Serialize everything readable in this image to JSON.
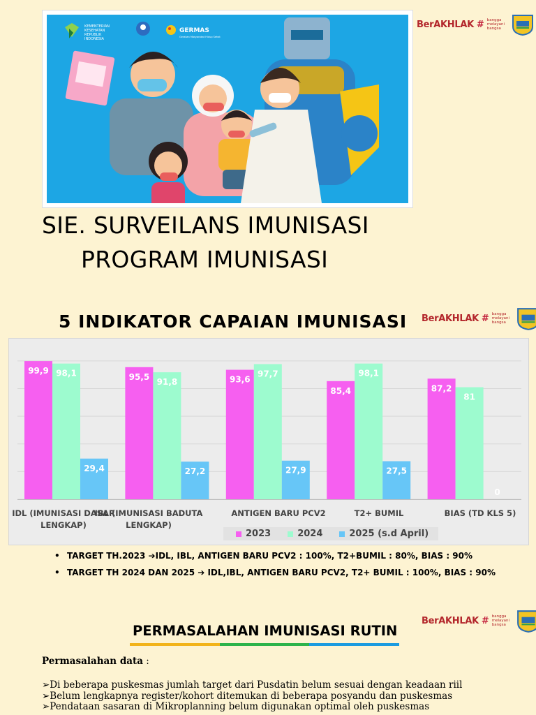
{
  "banner": {
    "ministry_text": "KEMENTERIAN KESEHATAN REPUBLIK INDONESIA",
    "germas_text": "GERMAS",
    "germas_sub": "Gerakan Masyarakat Hidup Sehat"
  },
  "brand": {
    "name": "BerAKHLAK",
    "tagline": "bangga melayani bangsa",
    "accent": "#b3262b"
  },
  "header": {
    "title_line1": "SIE. SURVEILANS IMUNISASI",
    "title_line2": "PROGRAM IMUNISASI"
  },
  "chart_title": "5 INDIKATOR CAPAIAN IMUNISASI",
  "chart_data": {
    "type": "bar",
    "categories": [
      [
        "IDL (IMUNISASI DASAR",
        "LENGKAP)"
      ],
      [
        "IBL (IMUNISASI BADUTA",
        "LENGKAP)"
      ],
      [
        "ANTIGEN BARU PCV2"
      ],
      [
        "T2+ BUMIL"
      ],
      [
        "BIAS (TD KLS 5)"
      ]
    ],
    "series": [
      {
        "name": "2023",
        "color": "#f65ff0",
        "values": [
          99.9,
          95.5,
          93.6,
          85.4,
          87.2
        ],
        "labels": [
          "99,9",
          "95,5",
          "93,6",
          "85,4",
          "87,2"
        ]
      },
      {
        "name": "2024",
        "color": "#9dfbcf",
        "values": [
          98.1,
          91.8,
          97.7,
          98.1,
          81
        ],
        "labels": [
          "98,1",
          "91,8",
          "97,7",
          "98,1",
          "81"
        ]
      },
      {
        "name": "2025 (s.d April)",
        "color": "#67c6f7",
        "values": [
          29.4,
          27.2,
          27.9,
          27.5,
          0
        ],
        "labels": [
          "29,4",
          "27,2",
          "27,9",
          "27,5",
          "0"
        ]
      }
    ],
    "ylim": [
      0,
      105
    ],
    "grid": true,
    "legend": "bottom"
  },
  "targets": [
    {
      "bullet": "•",
      "text": "TARGET TH.2023 ➔IDL, IBL, ANTIGEN BARU PCV2 : 100%, T2+BUMIL : 80%, BIAS : 90%"
    },
    {
      "bullet": "•",
      "text": "TARGET TH 2024 DAN 2025 ➔ IDL,IBL, ANTIGEN BARU PCV2, T2+ BUMIL : 100%, BIAS : 90%"
    }
  ],
  "permasalahan": {
    "title": "PERMASALAHAN IMUNISASI RUTIN",
    "line_colors": [
      "#f2b31a",
      "#2db34a",
      "#1b9be0"
    ],
    "subtitle_bold": "Permasalahan data",
    "subtitle_rest": " :",
    "items": [
      "➢Di beberapa puskesmas jumlah target dari Pusdatin belum sesuai dengan keadaan riil",
      "➢Belum lengkapnya register/kohort ditemukan di beberapa posyandu dan puskesmas",
      "➢Pendataan sasaran di Mikroplanning belum digunakan optimal oleh puskesmas"
    ]
  }
}
